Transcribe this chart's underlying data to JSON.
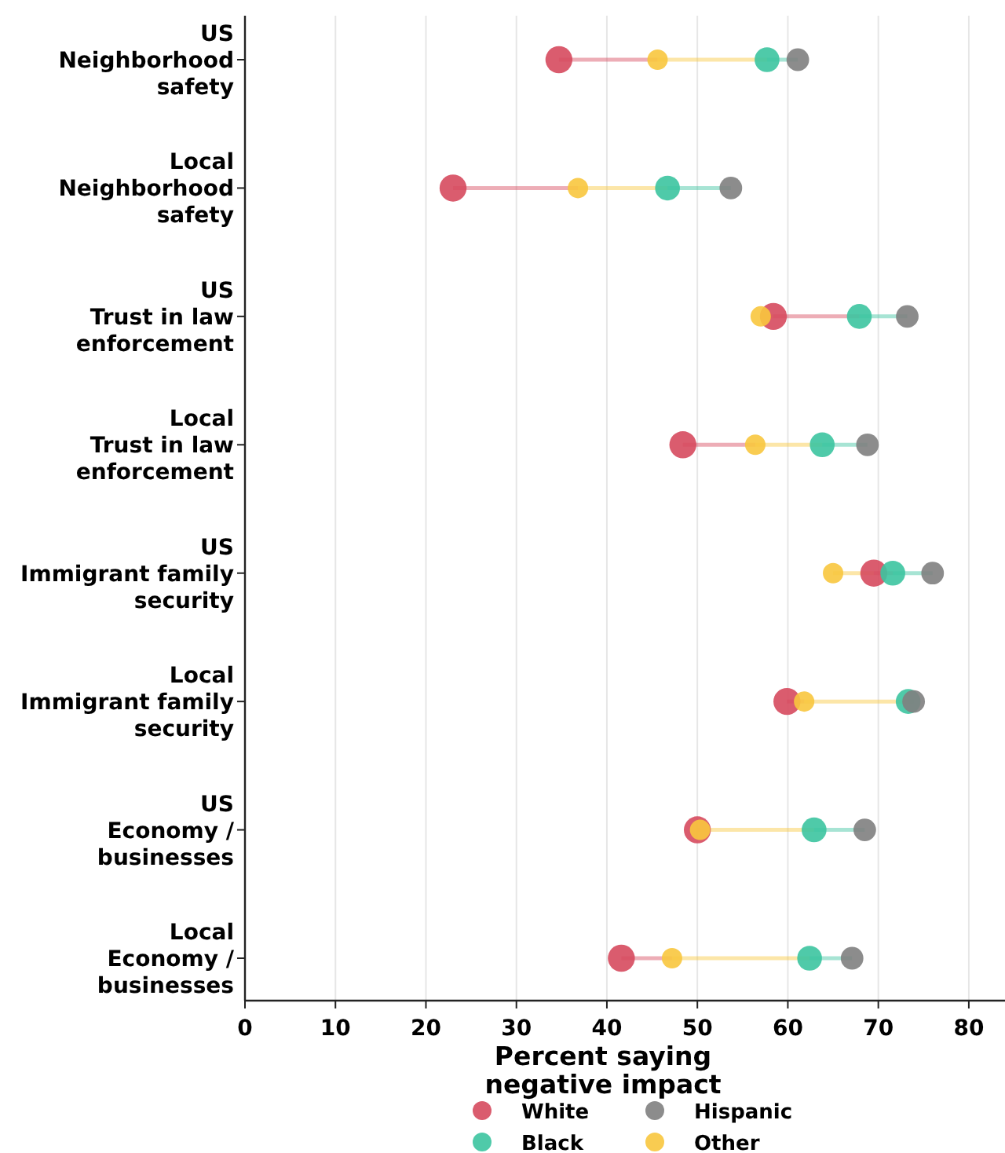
{
  "chart_data": {
    "type": "scatter",
    "orientation": "horizontal",
    "xlabel": "Percent saying\nnegative impact",
    "categories": [
      "US\nNeighborhood\nsafety",
      "Local\nNeighborhood\nsafety",
      "US\nTrust in law\nenforcement",
      "Local\nTrust in law\nenforcement",
      "US\nImmigrant family\nsecurity",
      "Local\nImmigrant family\nsecurity",
      "US\nEconomy /\nbusinesses",
      "Local\nEconomy /\nbusinesses"
    ],
    "series": [
      {
        "name": "White",
        "color": "#d64a5e",
        "values": [
          34.7,
          23.0,
          58.4,
          48.4,
          69.5,
          59.9,
          50.0,
          41.6
        ]
      },
      {
        "name": "Black",
        "color": "#3cc4a0",
        "values": [
          57.7,
          46.7,
          67.9,
          63.8,
          71.6,
          73.3,
          62.9,
          62.4
        ]
      },
      {
        "name": "Hispanic",
        "color": "#7f7f7f",
        "values": [
          61.1,
          53.7,
          73.2,
          68.8,
          76.0,
          73.9,
          68.5,
          67.1
        ]
      },
      {
        "name": "Other",
        "color": "#f8c73e",
        "values": [
          45.6,
          36.8,
          57.0,
          56.4,
          65.0,
          61.8,
          50.3,
          47.2
        ]
      }
    ],
    "xlim": [
      0,
      84
    ],
    "xticks": [
      0,
      10,
      20,
      30,
      40,
      50,
      60,
      70,
      80
    ],
    "grid": "x",
    "legend": "bottom",
    "marker": "circle"
  }
}
